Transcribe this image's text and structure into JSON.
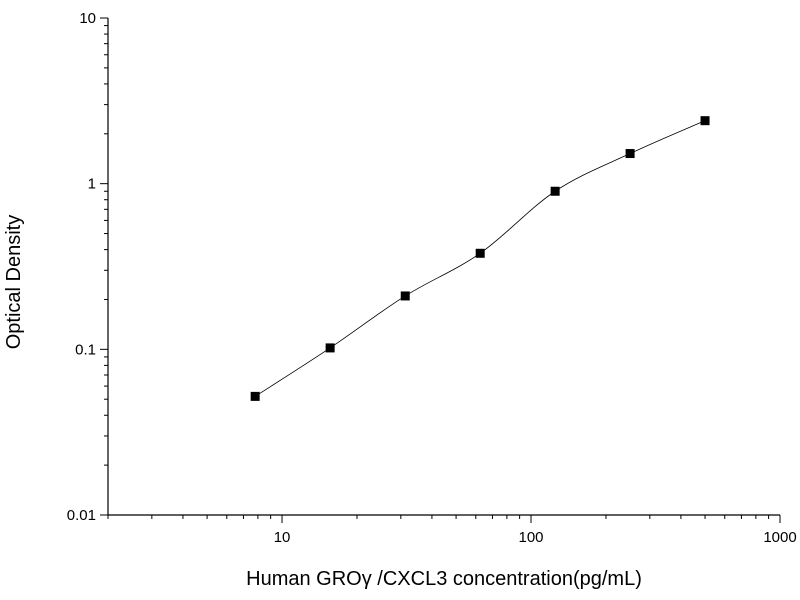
{
  "chart_data": {
    "type": "scatter",
    "xlabel": "Human GROγ  /CXCL3 concentration(pg/mL)",
    "ylabel": "Optical Density",
    "xscale": "log",
    "yscale": "log",
    "xlim": [
      2,
      1000
    ],
    "ylim": [
      0.01,
      10
    ],
    "xticks": [
      {
        "value": 10,
        "label": "10"
      },
      {
        "value": 100,
        "label": "100"
      },
      {
        "value": 1000,
        "label": "1000"
      }
    ],
    "yticks": [
      {
        "value": 0.01,
        "label": "0.01"
      },
      {
        "value": 0.1,
        "label": "0.1"
      },
      {
        "value": 1,
        "label": "1"
      },
      {
        "value": 10,
        "label": "10"
      }
    ],
    "grid": false,
    "legend": "none",
    "series": [
      {
        "x": [
          7.8,
          15.6,
          31.25,
          62.5,
          125,
          250,
          500
        ],
        "y": [
          0.052,
          0.102,
          0.21,
          0.38,
          0.9,
          1.52,
          2.4
        ],
        "marker": "square",
        "color": "#000000",
        "fit_curve": true
      }
    ]
  }
}
